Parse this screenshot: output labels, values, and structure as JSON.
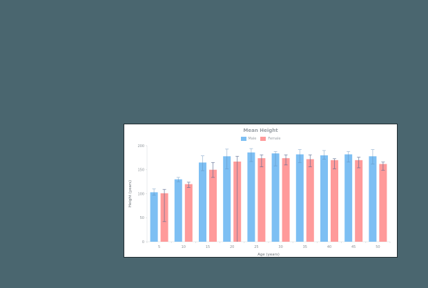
{
  "colors": {
    "background": "#4a666f",
    "male": "#7dbff3",
    "female": "#ff9a9a",
    "error_bar_male": "#5a8ab8",
    "error_bar_female": "#5a6a90"
  },
  "chart_data": {
    "type": "bar",
    "title": "Mean Height",
    "xlabel": "Age (years)",
    "ylabel": "Height (years)",
    "ylim": [
      0,
      200
    ],
    "yticks": [
      0,
      50,
      100,
      150,
      200
    ],
    "grid": false,
    "legend_position": "top",
    "categories": [
      "5",
      "10",
      "15",
      "20",
      "25",
      "30",
      "35",
      "40",
      "45",
      "50"
    ],
    "series": [
      {
        "name": "Male",
        "values": [
          103,
          130,
          165,
          178,
          186,
          184,
          182,
          180,
          182,
          178
        ],
        "error_low": [
          97,
          125,
          148,
          152,
          167,
          158,
          165,
          172,
          166,
          162
        ],
        "error_high": [
          110,
          134,
          179,
          193,
          194,
          188,
          192,
          190,
          188,
          192
        ]
      },
      {
        "name": "Female",
        "values": [
          101,
          120,
          150,
          167,
          174,
          174,
          172,
          170,
          170,
          162
        ],
        "error_low": [
          42,
          113,
          134,
          0,
          156,
          160,
          156,
          152,
          154,
          149
        ],
        "error_high": [
          109,
          124,
          165,
          178,
          181,
          181,
          181,
          173,
          176,
          166
        ]
      }
    ]
  }
}
